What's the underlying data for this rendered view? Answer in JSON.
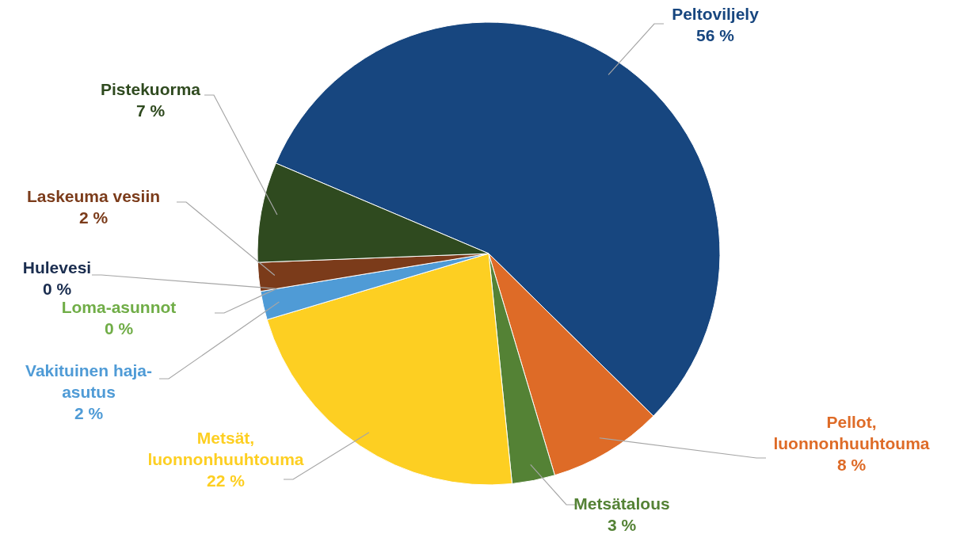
{
  "chart_data": {
    "type": "pie",
    "categories": [
      "Peltoviljely",
      "Pellot, luonnonhuuhtouma",
      "Metsätalous",
      "Metsät, luonnonhuuhtouma",
      "Vakituinen haja-asutus",
      "Loma-asunnot",
      "Hulevesi",
      "Laskeuma vesiin",
      "Pistekuorma"
    ],
    "values": [
      56,
      8,
      3,
      22,
      2,
      0,
      0,
      2,
      7
    ],
    "value_labels": [
      "56 %",
      "8 %",
      "3 %",
      "22 %",
      "2 %",
      "0 %",
      "0 %",
      "2 %",
      "7 %"
    ],
    "colors": [
      "#17467f",
      "#de6b27",
      "#548235",
      "#fdcf22",
      "#4f9bd6",
      "#70ad47",
      "#1a2d4f",
      "#7b3b1a",
      "#2f4a1f"
    ]
  }
}
